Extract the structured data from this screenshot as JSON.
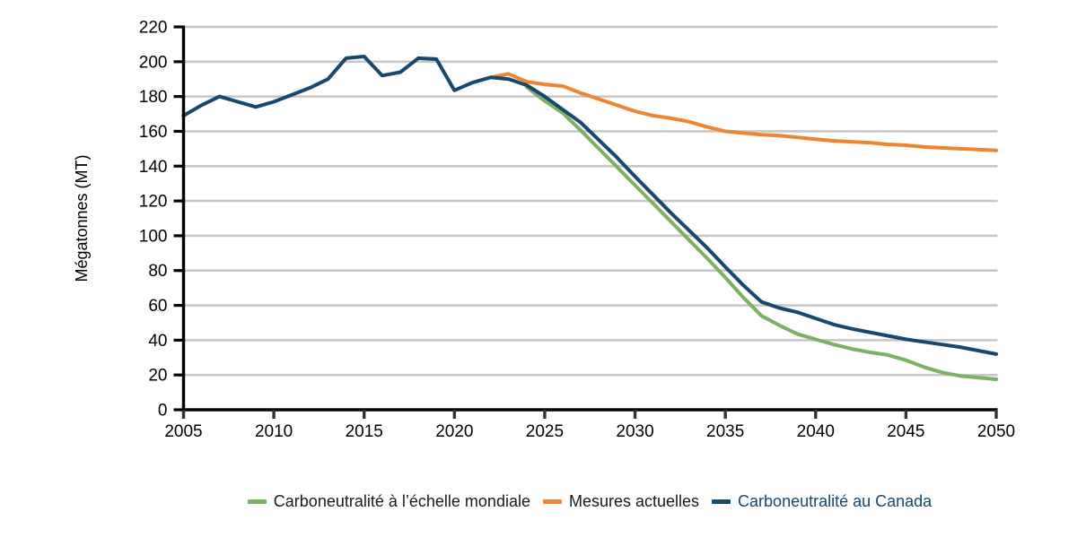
{
  "chart_data": {
    "type": "line",
    "title": "",
    "ylabel": "Mégatonnes (MT)",
    "xlabel": "",
    "ylim": [
      0,
      220
    ],
    "xlim": [
      2005,
      2050
    ],
    "yticks": [
      0,
      20,
      40,
      60,
      80,
      100,
      120,
      140,
      160,
      180,
      200,
      220
    ],
    "xticks": [
      2005,
      2010,
      2015,
      2020,
      2025,
      2030,
      2035,
      2040,
      2045,
      2050
    ],
    "grid": "horizontal",
    "legend_position": "bottom",
    "x": [
      2005,
      2006,
      2007,
      2008,
      2009,
      2010,
      2011,
      2012,
      2013,
      2014,
      2015,
      2016,
      2017,
      2018,
      2019,
      2020,
      2021,
      2022,
      2023,
      2024,
      2025,
      2026,
      2027,
      2028,
      2029,
      2030,
      2031,
      2032,
      2033,
      2034,
      2035,
      2036,
      2037,
      2038,
      2039,
      2040,
      2041,
      2042,
      2043,
      2044,
      2045,
      2046,
      2047,
      2048,
      2049,
      2050
    ],
    "series": [
      {
        "name": "Carboneutralité à l’échelle mondiale",
        "color": "#7CB163",
        "label_color": "#1a1a1a",
        "values": [
          null,
          null,
          null,
          null,
          null,
          null,
          null,
          null,
          null,
          null,
          null,
          null,
          null,
          null,
          null,
          null,
          null,
          null,
          null,
          185.5,
          177.5,
          170.5,
          160.5,
          150,
          139.5,
          129,
          118.5,
          108,
          97.5,
          87,
          76,
          64.5,
          54,
          48.5,
          43.5,
          40.5,
          37.5,
          35,
          33,
          31.5,
          28.5,
          24.5,
          21.5,
          19.5,
          18.5,
          17.5
        ]
      },
      {
        "name": "Mesures actuelles",
        "color": "#EE8534",
        "label_color": "#1a1a1a",
        "values": [
          null,
          null,
          null,
          null,
          null,
          null,
          null,
          null,
          null,
          null,
          null,
          null,
          null,
          null,
          null,
          null,
          null,
          191,
          193,
          188.5,
          187,
          186,
          182,
          178.5,
          175,
          171.5,
          169,
          167.5,
          165.5,
          162.5,
          160,
          159,
          158,
          157.5,
          156.5,
          155.5,
          154.5,
          154,
          153.5,
          152.5,
          152,
          151,
          150.5,
          150,
          149.5,
          149
        ]
      },
      {
        "name": "Carboneutralité au Canada",
        "color": "#17486D",
        "label_color": "#17486D",
        "values": [
          169,
          175,
          180,
          177,
          174,
          177,
          181,
          185,
          190,
          202,
          203,
          192,
          194,
          202,
          201.5,
          183.5,
          188,
          191,
          190,
          186.5,
          180,
          172.5,
          165,
          155,
          145,
          134,
          123.5,
          113,
          103,
          93,
          82,
          71.5,
          62,
          58.5,
          56,
          52.5,
          49,
          46.5,
          44.5,
          42.5,
          40.5,
          39,
          37.5,
          36,
          34,
          32
        ]
      }
    ]
  },
  "colors": {
    "background": "#FFFFFF",
    "gridline": "#C7C7C7",
    "axis": "#000000",
    "tick_text": "#000000"
  }
}
